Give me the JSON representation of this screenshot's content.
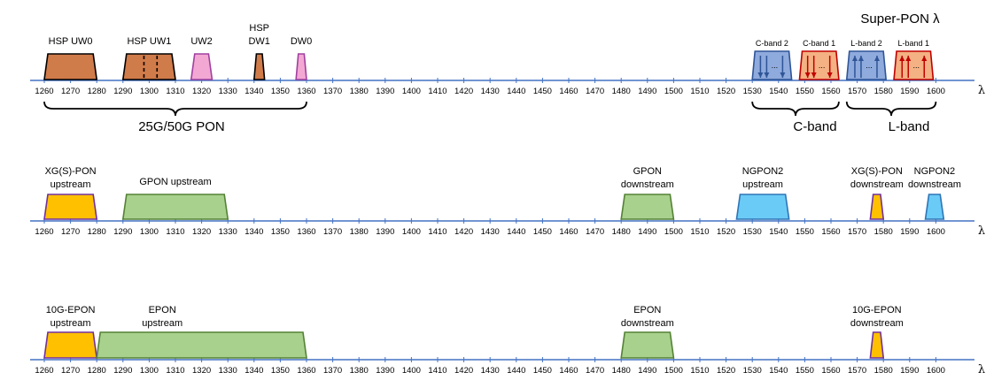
{
  "axis": {
    "ticks": [
      "1260",
      "1270",
      "1280",
      "1290",
      "1300",
      "1310",
      "1320",
      "1330",
      "1340",
      "1350",
      "1360",
      "1370",
      "1380",
      "1390",
      "1400",
      "1410",
      "1420",
      "1430",
      "1440",
      "1450",
      "1460",
      "1470",
      "1480",
      "1490",
      "1500",
      "1510",
      "1520",
      "1530",
      "1540",
      "1550",
      "1560",
      "1570",
      "1580",
      "1590",
      "1600"
    ],
    "tick_start": 1260,
    "tick_step": 10,
    "lambda_symbol": "λ",
    "line_color": "#4472c4"
  },
  "colors": {
    "hsp_fill": "#d07b4a",
    "pink_fill": "#f3a8d3",
    "pink_stroke": "#a040a0",
    "yellow_fill": "#ffc000",
    "yellow_stroke": "#7030a0",
    "green_fill": "#a9d18e",
    "green_stroke": "#548235",
    "cyan_fill": "#6bcbf7",
    "cyan_stroke": "#2e75b6",
    "blue_fill": "#8faadc",
    "blue_stroke": "#2f5597",
    "red_fill": "#f4b183",
    "red_stroke": "#c00000"
  },
  "row1": {
    "bands": [
      {
        "id": "hsp-uw0",
        "lines": [
          "HSP UW0"
        ],
        "from": 1260,
        "to": 1280,
        "color": "hsp"
      },
      {
        "id": "hsp-uw1",
        "lines": [
          "HSP UW1"
        ],
        "from": 1290,
        "to": 1310,
        "color": "hsp",
        "dashed": [
          1298,
          1303
        ]
      },
      {
        "id": "uw2",
        "lines": [
          "UW2"
        ],
        "from": 1316,
        "to": 1324,
        "color": "pink"
      },
      {
        "id": "hsp-dw1",
        "lines": [
          "HSP",
          "DW1"
        ],
        "from": 1340,
        "to": 1344,
        "color": "hsp"
      },
      {
        "id": "dw0",
        "lines": [
          "DW0"
        ],
        "from": 1356,
        "to": 1360,
        "color": "pink"
      }
    ],
    "brace_label": "25G/50G PON",
    "brace_from": 1260,
    "brace_to": 1360
  },
  "superpon": {
    "title": "Super-PON λ",
    "channels": [
      {
        "label": "C-band 2",
        "from": 1530,
        "to": 1545,
        "color": "blue",
        "dir": "down"
      },
      {
        "label": "C-band 1",
        "from": 1548,
        "to": 1563,
        "color": "red",
        "dir": "down"
      },
      {
        "label": "L-band 2",
        "from": 1566,
        "to": 1581,
        "color": "blue",
        "dir": "up"
      },
      {
        "label": "L-band 1",
        "from": 1584,
        "to": 1599,
        "color": "red",
        "dir": "up"
      }
    ],
    "ellipsis": "...",
    "c_band_label": "C-band",
    "l_band_label": "L-band"
  },
  "row2": {
    "bands": [
      {
        "id": "xgs-pon-upstream",
        "lines": [
          "XG(S)-PON",
          "upstream"
        ],
        "from": 1260,
        "to": 1280,
        "color": "yellow"
      },
      {
        "id": "gpon-upstream",
        "lines": [
          "GPON upstream"
        ],
        "from": 1290,
        "to": 1330,
        "color": "green"
      },
      {
        "id": "gpon-downstream",
        "lines": [
          "GPON",
          "downstream"
        ],
        "from": 1480,
        "to": 1500,
        "color": "green"
      },
      {
        "id": "ngpon2-upstream",
        "lines": [
          "NGPON2",
          "upstream"
        ],
        "from": 1524,
        "to": 1544,
        "color": "cyan"
      },
      {
        "id": "xgs-pon-downstream",
        "lines": [
          "XG(S)-PON",
          "downstream"
        ],
        "from": 1575,
        "to": 1580,
        "color": "yellow"
      },
      {
        "id": "ngpon2-downstream",
        "lines": [
          "NGPON2",
          "downstream"
        ],
        "from": 1596,
        "to": 1603,
        "color": "cyan"
      }
    ]
  },
  "row3": {
    "bands": [
      {
        "id": "10g-epon-upstream",
        "lines": [
          "10G-EPON",
          "upstream"
        ],
        "from": 1260,
        "to": 1280,
        "color": "yellow"
      },
      {
        "id": "epon-upstream",
        "lines": [
          "EPON",
          "upstream"
        ],
        "from": 1280,
        "to": 1360,
        "color": "green",
        "label_center": 1305
      },
      {
        "id": "epon-downstream",
        "lines": [
          "EPON",
          "downstream"
        ],
        "from": 1480,
        "to": 1500,
        "color": "green"
      },
      {
        "id": "10g-epon-downstream",
        "lines": [
          "10G-EPON",
          "downstream"
        ],
        "from": 1575,
        "to": 1580,
        "color": "yellow"
      }
    ]
  }
}
